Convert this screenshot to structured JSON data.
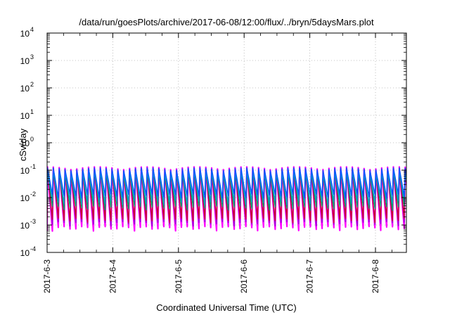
{
  "chart_data": {
    "type": "line",
    "title": "/data/run/goesPlots/archive/2017-06-08/12:00/flux/../bryn/5daysMars.plot",
    "xlabel": "Coordinated Universal Time (UTC)",
    "ylabel": "cSv/day",
    "x_range": [
      "2017-06-03",
      "2017-06-08 12:00"
    ],
    "x_tick_labels": [
      "2017-6-3",
      "2017-6-4",
      "2017-6-5",
      "2017-6-6",
      "2017-6-7",
      "2017-6-8"
    ],
    "y_scale": "log",
    "ylim": [
      0.0001,
      10000
    ],
    "y_tick_labels": [
      {
        "base": "10",
        "exp": "4"
      },
      {
        "base": "10",
        "exp": "3"
      },
      {
        "base": "10",
        "exp": "2"
      },
      {
        "base": "10",
        "exp": "1"
      },
      {
        "base": "10",
        "exp": "0"
      },
      {
        "base": "10",
        "exp": "-1"
      },
      {
        "base": "10",
        "exp": "-2"
      },
      {
        "base": "10",
        "exp": "-3"
      },
      {
        "base": "10",
        "exp": "-4"
      }
    ],
    "grid": true,
    "pattern": {
      "description": "sawtooth-like periodic flux, repeated ~11 spikes per day",
      "cycles_per_day": 11.2,
      "peak_value": 0.12,
      "trough_value": 0.0025
    },
    "series": [
      {
        "color": "#ff00ff",
        "peak": 0.12,
        "trough": 0.0008
      },
      {
        "color": "#9400d3",
        "peak": 0.11,
        "trough": 0.0012
      },
      {
        "color": "#cc0033",
        "peak": 0.1,
        "trough": 0.0016
      },
      {
        "color": "#009e73",
        "peak": 0.09,
        "trough": 0.0045
      },
      {
        "color": "#00a0c0",
        "peak": 0.085,
        "trough": 0.007
      },
      {
        "color": "#0055ff",
        "peak": 0.11,
        "trough": 0.012
      }
    ]
  }
}
